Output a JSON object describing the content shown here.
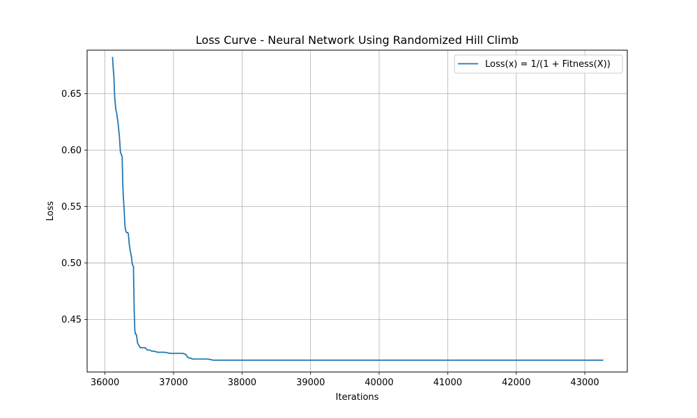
{
  "chart_data": {
    "type": "line",
    "title": "Loss Curve - Neural Network Using Randomized Hill Climb",
    "xlabel": "Iterations",
    "ylabel": "Loss",
    "xlim": [
      35740,
      43620
    ],
    "ylim": [
      0.4035,
      0.6885
    ],
    "xticks": [
      36000,
      37000,
      38000,
      39000,
      40000,
      41000,
      42000,
      43000
    ],
    "xtick_labels": [
      "36000",
      "37000",
      "38000",
      "39000",
      "40000",
      "41000",
      "42000",
      "43000"
    ],
    "yticks": [
      0.45,
      0.5,
      0.55,
      0.6,
      0.65
    ],
    "ytick_labels": [
      "0.45",
      "0.50",
      "0.55",
      "0.60",
      "0.65"
    ],
    "grid": true,
    "legend_position": "upper right",
    "series": [
      {
        "name": "Loss(x) = 1/(1 + Fitness(X))",
        "color": "#1f77b4",
        "x": [
          36111,
          36121,
          36131,
          36141,
          36151,
          36161,
          36171,
          36181,
          36191,
          36201,
          36211,
          36226,
          36241,
          36251,
          36261,
          36271,
          36281,
          36291,
          36306,
          36316,
          36331,
          36341,
          36356,
          36371,
          36386,
          36396,
          36406,
          36416,
          36426,
          36436,
          36446,
          36456,
          36466,
          36476,
          36486,
          36496,
          36516,
          36541,
          36566,
          36586,
          36601,
          36621,
          36651,
          36681,
          36711,
          36771,
          36821,
          36871,
          36951,
          37021,
          37081,
          37141,
          37181,
          37201,
          37221,
          37241,
          37281,
          37341,
          37421,
          37501,
          37581,
          37621,
          37701,
          37801,
          37901,
          38001,
          38501,
          39001,
          40001,
          41001,
          42001,
          43001,
          43260
        ],
        "y": [
          0.682,
          0.672,
          0.665,
          0.648,
          0.641,
          0.635,
          0.633,
          0.628,
          0.624,
          0.618,
          0.612,
          0.598,
          0.596,
          0.594,
          0.568,
          0.556,
          0.546,
          0.533,
          0.528,
          0.527,
          0.527,
          0.526,
          0.516,
          0.51,
          0.506,
          0.5,
          0.498,
          0.497,
          0.46,
          0.44,
          0.437,
          0.437,
          0.434,
          0.429,
          0.428,
          0.427,
          0.425,
          0.425,
          0.425,
          0.425,
          0.424,
          0.423,
          0.423,
          0.422,
          0.422,
          0.421,
          0.421,
          0.421,
          0.42,
          0.42,
          0.42,
          0.42,
          0.419,
          0.417,
          0.416,
          0.416,
          0.415,
          0.415,
          0.415,
          0.415,
          0.414,
          0.414,
          0.414,
          0.414,
          0.414,
          0.414,
          0.414,
          0.414,
          0.414,
          0.414,
          0.414,
          0.414,
          0.414
        ]
      }
    ]
  }
}
